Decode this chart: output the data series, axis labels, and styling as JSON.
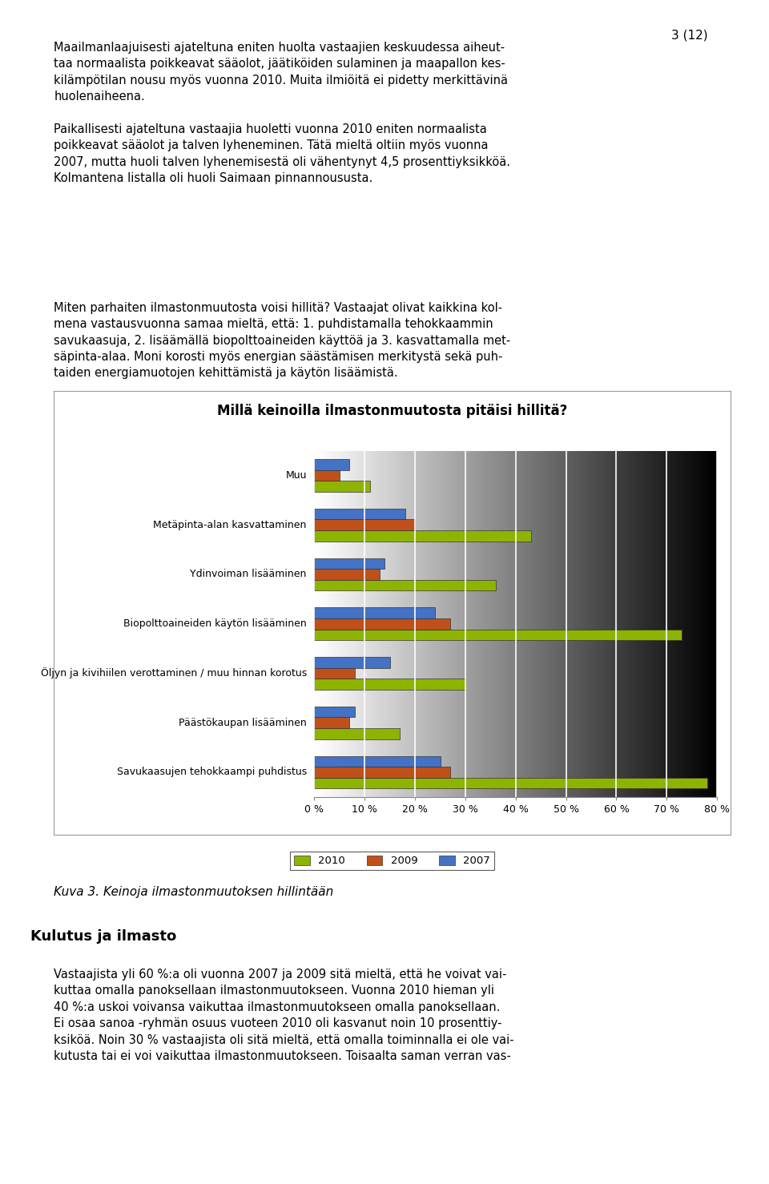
{
  "title": "Millä keinoilla ilmastonmuutosta pitäisi hillitä?",
  "categories": [
    "Muu",
    "Metäpinta-alan kasvattaminen",
    "Ydinvoiman lisääminen",
    "Biopolttoaineiden käytön lisääminen",
    "Öljyn ja kivihiilen verottaminen / muu hinnan korotus",
    "Päästökaupan lisääminen",
    "Savukaasujen tehokkaampi puhdistus"
  ],
  "series": {
    "2010": [
      11,
      43,
      36,
      73,
      30,
      17,
      78
    ],
    "2009": [
      5,
      20,
      13,
      27,
      8,
      7,
      27
    ],
    "2007": [
      7,
      18,
      14,
      24,
      15,
      8,
      25
    ]
  },
  "colors": {
    "2010": "#8DB400",
    "2009": "#C0501A",
    "2007": "#4472C4"
  },
  "xlim": [
    0,
    80
  ],
  "xticks": [
    0,
    10,
    20,
    30,
    40,
    50,
    60,
    70,
    80
  ],
  "background_color": "#D8D8D8",
  "figsize": [
    9.6,
    14.78
  ],
  "dpi": 100,
  "text1": "Maailmanlaajuisesti ajateltuna eniten huolta vastaajien keskuudessa aiheut-\ntaa normaalista poikkeavat sääolot, jäätiköiden sulaminen ja maapallon kes-\nkilämpötilan nousu myös vuonna 2010. Muita ilmiöitä ei pidetty merkittävinä\nhuolenaiheena.\n\nPaikallisesti ajateltuna vastaajia huoletti vuonna 2010 eniten normaalista\npoikkeavat sääolot ja talven lyheneminen. Tätä mieltä oltiin myös vuonna\n2007, mutta huoli talven lyhenemisestä oli vähentynyt 4,5 prosenttiyksikköä.\nKolmantena listalla oli huoli Saimaan pinnannoususta.",
  "text2": "Miten parhaiten ilmastonmuutosta voisi hillitä? Vastaajat olivat kaikkina kol-\nmena vastausvuonna samaa mieltä, että: 1. puhdistamalla tehokkaammin\nsavukaasuja, 2. lisäämällä biopolttoaineiden käyttöä ja 3. kasvattamalla met-\nsäpinta-alaa. Moni korosti myös energian säästämisen merkitystä sekä puh-\ntaiden energiamuotojen kehittämistä ja käytön lisäämistä.",
  "caption": "Kuva 3. Keinoja ilmastonmuutoksen hillintään",
  "section_header": "Kulutus ja ilmasto",
  "bottom_text": "Vastaajista yli 60 %:a oli vuonna 2007 ja 2009 sitä mieltä, että he voivat vai-\nkuttaa omalla panoksellaan ilmastonmuutokseen. Vuonna 2010 hieman yli\n40 %:a uskoi voivansa vaikuttaa ilmastonmuutokseen omalla panoksellaan.\nEi osaa sanoa -ryhmän osuus vuoteen 2010 oli kasvanut noin 10 prosenttiy-\nksiköä. Noin 30 % vastaajista oli sitä mieltä, että omalla toiminnalla ei ole vai-\nkutusta tai ei voi vaikuttaa ilmastonmuutokseen. Toisaalta saman verran vas-",
  "page_number": "3 (12)"
}
